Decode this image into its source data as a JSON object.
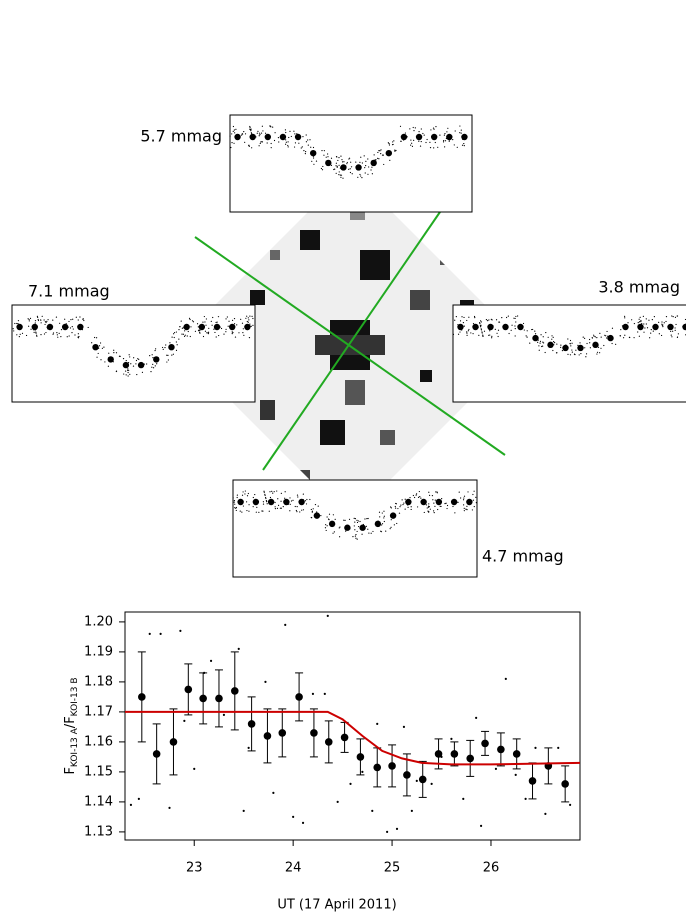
{
  "image_panel": {
    "labels": [
      "5.7 mmag",
      "7.1 mmag",
      "3.8 mmag",
      "4.7 mmag"
    ]
  },
  "chart_data": {
    "type": "scatter",
    "xlabel": "UT (17 April 2011)",
    "ylabel": [
      "F",
      "KOI-13 A",
      "/F",
      "KOI-13 B"
    ],
    "xlim": [
      22.3,
      26.9
    ],
    "ylim": [
      1.1273,
      1.2033
    ],
    "xticks": [
      23,
      24,
      25,
      26
    ],
    "yticks": [
      1.13,
      1.14,
      1.15,
      1.16,
      1.17,
      1.18,
      1.19,
      {
        "value": 1.2,
        "label": "1.20"
      }
    ],
    "grid": false,
    "series": [
      {
        "kind": "points",
        "color": "#000000",
        "x": [
          22.36,
          22.44,
          22.55,
          22.66,
          22.75,
          22.86,
          22.9,
          23.0,
          23.1,
          23.17,
          23.3,
          23.45,
          23.5,
          23.55,
          23.72,
          23.8,
          23.92,
          24.0,
          24.1,
          24.2,
          24.32,
          24.35,
          24.45,
          24.58,
          24.7,
          24.8,
          24.85,
          24.95,
          25.05,
          25.12,
          25.2,
          25.25,
          25.4,
          25.5,
          25.6,
          25.72,
          25.85,
          25.9,
          26.05,
          26.15,
          26.25,
          26.35,
          26.45,
          26.55,
          26.68,
          26.8
        ],
        "values": [
          1.139,
          1.141,
          1.196,
          1.196,
          1.138,
          1.197,
          1.167,
          1.151,
          1.183,
          1.187,
          1.169,
          1.191,
          1.137,
          1.158,
          1.18,
          1.143,
          1.199,
          1.135,
          1.133,
          1.176,
          1.176,
          1.202,
          1.14,
          1.146,
          1.15,
          1.137,
          1.166,
          1.13,
          1.131,
          1.165,
          1.137,
          1.147,
          1.146,
          1.155,
          1.161,
          1.141,
          1.168,
          1.132,
          1.151,
          1.181,
          1.149,
          1.141,
          1.158,
          1.136,
          1.158,
          1.139
        ]
      },
      {
        "kind": "errorbar",
        "color": "#000000",
        "x": [
          22.47,
          22.62,
          22.79,
          22.94,
          23.09,
          23.25,
          23.41,
          23.58,
          23.74,
          23.89,
          24.06,
          24.21,
          24.36,
          24.52,
          24.68,
          24.85,
          25.0,
          25.15,
          25.31,
          25.47,
          25.63,
          25.79,
          25.94,
          26.1,
          26.26,
          26.42,
          26.58,
          26.75
        ],
        "values": [
          1.175,
          1.156,
          1.16,
          1.1775,
          1.1745,
          1.1745,
          1.177,
          1.166,
          1.162,
          1.163,
          1.175,
          1.163,
          1.16,
          1.1615,
          1.155,
          1.1515,
          1.152,
          1.149,
          1.1475,
          1.156,
          1.156,
          1.1545,
          1.1595,
          1.1575,
          1.156,
          1.147,
          1.152,
          1.146
        ],
        "errors": [
          0.015,
          0.01,
          0.011,
          0.0085,
          0.0085,
          0.0095,
          0.013,
          0.009,
          0.009,
          0.008,
          0.008,
          0.008,
          0.007,
          0.005,
          0.006,
          0.0065,
          0.007,
          0.007,
          0.006,
          0.005,
          0.004,
          0.006,
          0.004,
          0.0055,
          0.005,
          0.006,
          0.006,
          0.006
        ]
      },
      {
        "kind": "line",
        "color": "#cc0000",
        "x": [
          22.3,
          24.35,
          24.5,
          24.7,
          24.9,
          25.1,
          25.3,
          25.6,
          26.0,
          26.9
        ],
        "values": [
          1.17,
          1.17,
          1.1675,
          1.162,
          1.157,
          1.1545,
          1.153,
          1.1525,
          1.1525,
          1.153
        ]
      }
    ]
  }
}
